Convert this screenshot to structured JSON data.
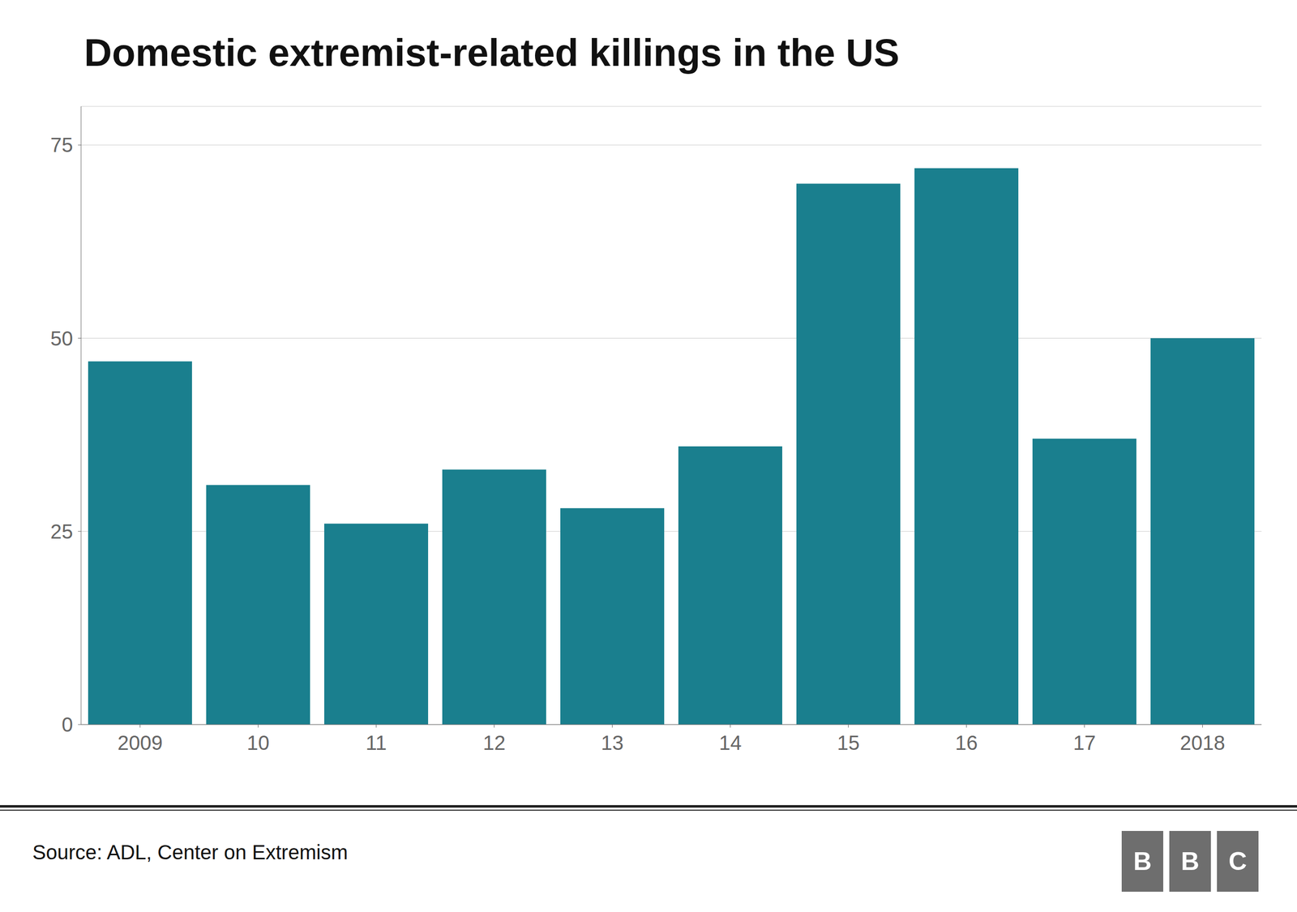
{
  "chart_data": {
    "type": "bar",
    "title": "Domestic extremist-related killings in the US",
    "categories": [
      "2009",
      "10",
      "11",
      "12",
      "13",
      "14",
      "15",
      "16",
      "17",
      "2018"
    ],
    "values": [
      47,
      31,
      26,
      33,
      28,
      36,
      70,
      72,
      37,
      50
    ],
    "color": "#1a7f8e",
    "ylim": [
      0,
      80
    ],
    "yticks": [
      0,
      25,
      50,
      75
    ],
    "grid": true,
    "annotations": [
      "Source: ADL, Center on Extremism",
      "B",
      "B",
      "C"
    ]
  }
}
